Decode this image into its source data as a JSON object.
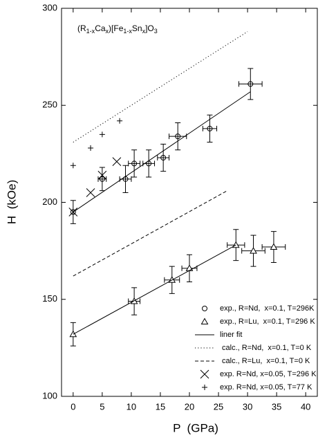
{
  "chart_data": {
    "type": "scatter",
    "x_label": "P  (GPa)",
    "y_label": "H  (kOe)",
    "annotation": [
      "(R",
      "1-x",
      "Ca",
      "x",
      ")[Fe",
      "1-x",
      "Sn",
      "x",
      "]O",
      "3"
    ],
    "xlim": [
      -2,
      42
    ],
    "ylim": [
      100,
      300
    ],
    "xticks": [
      0,
      5,
      10,
      15,
      20,
      25,
      30,
      35,
      40
    ],
    "yticks": [
      100,
      150,
      200,
      250,
      300
    ],
    "legend": "lower right",
    "series": [
      {
        "name": "exp., R=Nd,  x=0.1, T=296K",
        "marker": "circle",
        "color": "#000000",
        "x": [
          0,
          5,
          9,
          10.5,
          13,
          15.5,
          18,
          23.5,
          30.5
        ],
        "values": [
          195,
          212,
          212,
          220,
          220,
          223,
          234,
          238,
          261
        ],
        "xerr": [
          0,
          0.7,
          1,
          1,
          1,
          1,
          1.5,
          1.2,
          2
        ],
        "yerr": [
          6,
          6,
          7,
          7,
          7,
          7,
          7,
          7,
          8
        ]
      },
      {
        "name": "exp., R=Lu,  x=0.1, T=296 K",
        "marker": "triangle",
        "color": "#000000",
        "x": [
          0,
          10.5,
          17,
          20,
          28,
          31,
          34.5
        ],
        "values": [
          132,
          149,
          160,
          166,
          178,
          175,
          177
        ],
        "xerr": [
          0,
          1,
          1.3,
          1.3,
          1.5,
          2,
          2
        ],
        "yerr": [
          6,
          7,
          7,
          7,
          8,
          8,
          8
        ]
      },
      {
        "name": "liner fit",
        "marker": "line",
        "dash": "solid",
        "color": "#000000",
        "x": [
          0,
          30.5,
          null,
          0,
          28
        ],
        "values": [
          195,
          257,
          null,
          132,
          178
        ]
      },
      {
        "name": " calc., R=Nd,  x=0.1, T=0 K",
        "marker": "line",
        "dash": "dotted",
        "color": "#000000",
        "x": [
          0,
          30
        ],
        "values": [
          231,
          288
        ]
      },
      {
        "name": " calc., R=Lu,  x=0.1, T=0 K",
        "marker": "line",
        "dash": "dashed",
        "color": "#000000",
        "x": [
          0,
          26.5
        ],
        "values": [
          162,
          206
        ]
      },
      {
        "name": "exp. R=Nd, x=0.05, T=296 K",
        "marker": "x",
        "color": "#000000",
        "x": [
          0,
          3,
          5,
          7.5
        ],
        "values": [
          195,
          205,
          214,
          221
        ]
      },
      {
        "name": "exp. R=Nd, x=0.05, T=77 K",
        "marker": "plus",
        "color": "#000000",
        "x": [
          0,
          3,
          5,
          8
        ],
        "values": [
          219,
          228,
          235,
          242
        ]
      }
    ]
  }
}
